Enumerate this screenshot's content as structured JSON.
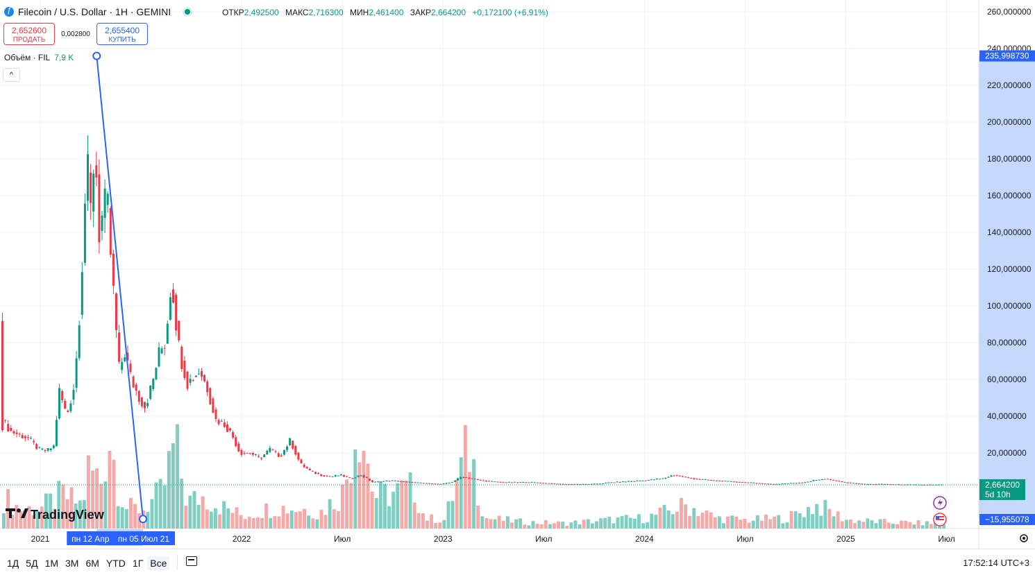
{
  "header": {
    "symbol_title": "Filecoin / U.S. Dollar · 1H · GEMINI",
    "ohlc": [
      {
        "label": "ОТКР",
        "value": "2,492500"
      },
      {
        "label": "МАКС",
        "value": "2,716300"
      },
      {
        "label": "МИН",
        "value": "2,461400"
      },
      {
        "label": "ЗАКР",
        "value": "2,664200"
      }
    ],
    "change": "+0,172100 (+6,91%)"
  },
  "trade": {
    "sell_price": "2,652600",
    "sell_label": "ПРОДАТЬ",
    "spread": "0,002800",
    "buy_price": "2,655400",
    "buy_label": "КУПИТЬ"
  },
  "volume_legend": {
    "label": "Объём · FIL",
    "value": "7,9 K"
  },
  "colors": {
    "up": "#089981",
    "down": "#f23645",
    "up_vol": "#80cdc1",
    "down_vol": "#f7a9a7",
    "drawing": "#2962ff",
    "axis_highlight": "#bbd1fd"
  },
  "chart_data": {
    "type": "candlestick",
    "price_axis": {
      "ticks": [
        "260,000000",
        "240,000000",
        "220,000000",
        "200,000000",
        "180,000000",
        "160,000000",
        "140,000000",
        "120,000000",
        "100,000000",
        "80,000000",
        "60,000000",
        "40,000000",
        "20,000000"
      ],
      "ylim": [
        0,
        260
      ],
      "labels": [
        {
          "value": "235,998730",
          "y": 235.99873,
          "kind": "drawing-top"
        },
        {
          "value": "2,664200",
          "y": 2.6642,
          "kind": "last",
          "countdown": "5d 10h"
        },
        {
          "value": "−15,955078",
          "y": -15.955078,
          "kind": "drawing-bottom"
        }
      ]
    },
    "time_axis": {
      "labels": [
        {
          "text": "2021",
          "t": 2021.0
        },
        {
          "text": "2022",
          "t": 2022.0
        },
        {
          "text": "Июл",
          "t": 2022.5
        },
        {
          "text": "2023",
          "t": 2023.0
        },
        {
          "text": "Июл",
          "t": 2023.5
        },
        {
          "text": "2024",
          "t": 2024.0
        },
        {
          "text": "Июл",
          "t": 2024.5
        },
        {
          "text": "2025",
          "t": 2025.0
        },
        {
          "text": "Июл",
          "t": 2025.5
        }
      ],
      "range_labels": [
        {
          "text": "пн 12 Апр",
          "t": 2021.28
        },
        {
          "text": "пн 05 Июл 21",
          "t": 2021.51
        }
      ]
    },
    "trend_line": {
      "start": {
        "t": 2021.28,
        "price": 235.99873
      },
      "end": {
        "t": 2021.51,
        "price": -15.955078
      }
    },
    "price_path": [
      [
        2020.8,
        120
      ],
      [
        2020.82,
        38
      ],
      [
        2020.86,
        32
      ],
      [
        2020.9,
        30
      ],
      [
        2020.95,
        28
      ],
      [
        2021.0,
        22
      ],
      [
        2021.04,
        21
      ],
      [
        2021.08,
        24
      ],
      [
        2021.1,
        55
      ],
      [
        2021.14,
        40
      ],
      [
        2021.18,
        58
      ],
      [
        2021.2,
        90
      ],
      [
        2021.22,
        130
      ],
      [
        2021.24,
        180
      ],
      [
        2021.26,
        150
      ],
      [
        2021.28,
        190
      ],
      [
        2021.3,
        140
      ],
      [
        2021.32,
        150
      ],
      [
        2021.34,
        160
      ],
      [
        2021.36,
        125
      ],
      [
        2021.38,
        95
      ],
      [
        2021.4,
        65
      ],
      [
        2021.43,
        75
      ],
      [
        2021.46,
        60
      ],
      [
        2021.5,
        50
      ],
      [
        2021.53,
        45
      ],
      [
        2021.57,
        60
      ],
      [
        2021.6,
        75
      ],
      [
        2021.63,
        80
      ],
      [
        2021.66,
        115
      ],
      [
        2021.7,
        75
      ],
      [
        2021.74,
        58
      ],
      [
        2021.8,
        65
      ],
      [
        2021.84,
        55
      ],
      [
        2021.88,
        38
      ],
      [
        2021.92,
        36
      ],
      [
        2021.96,
        30
      ],
      [
        2022.0,
        20
      ],
      [
        2022.05,
        20
      ],
      [
        2022.1,
        17
      ],
      [
        2022.15,
        22
      ],
      [
        2022.2,
        18
      ],
      [
        2022.25,
        27
      ],
      [
        2022.3,
        14
      ],
      [
        2022.35,
        10
      ],
      [
        2022.4,
        8
      ],
      [
        2022.45,
        7
      ],
      [
        2022.5,
        8
      ],
      [
        2022.55,
        6
      ],
      [
        2022.6,
        8
      ],
      [
        2022.66,
        4
      ],
      [
        2022.75,
        5
      ],
      [
        2022.85,
        4
      ],
      [
        2023.0,
        3
      ],
      [
        2023.05,
        4
      ],
      [
        2023.1,
        7
      ],
      [
        2023.2,
        5
      ],
      [
        2023.3,
        4
      ],
      [
        2023.45,
        4
      ],
      [
        2023.6,
        3
      ],
      [
        2023.75,
        3
      ],
      [
        2023.85,
        4
      ],
      [
        2024.0,
        5
      ],
      [
        2024.1,
        6
      ],
      [
        2024.15,
        8
      ],
      [
        2024.25,
        6
      ],
      [
        2024.35,
        5
      ],
      [
        2024.5,
        4
      ],
      [
        2024.65,
        3
      ],
      [
        2024.8,
        4
      ],
      [
        2024.9,
        6
      ],
      [
        2025.0,
        4
      ],
      [
        2025.1,
        3
      ],
      [
        2025.2,
        3
      ],
      [
        2025.3,
        2.7
      ],
      [
        2025.41,
        2.66
      ]
    ],
    "volume_ylim": [
      0,
      100000
    ],
    "volume_path": [
      [
        2020.8,
        30
      ],
      [
        2020.9,
        18
      ],
      [
        2021.0,
        20
      ],
      [
        2021.1,
        32
      ],
      [
        2021.2,
        22
      ],
      [
        2021.23,
        55
      ],
      [
        2021.3,
        45
      ],
      [
        2021.33,
        95
      ],
      [
        2021.38,
        40
      ],
      [
        2021.42,
        20
      ],
      [
        2021.5,
        18
      ],
      [
        2021.6,
        35
      ],
      [
        2021.66,
        80
      ],
      [
        2021.72,
        25
      ],
      [
        2021.8,
        30
      ],
      [
        2021.9,
        20
      ],
      [
        2022.0,
        12
      ],
      [
        2022.15,
        20
      ],
      [
        2022.35,
        18
      ],
      [
        2022.35,
        10
      ],
      [
        2022.5,
        35
      ],
      [
        2022.57,
        112
      ],
      [
        2022.65,
        30
      ],
      [
        2022.85,
        38
      ],
      [
        2022.9,
        10
      ],
      [
        2023.0,
        8
      ],
      [
        2023.12,
        78
      ],
      [
        2023.2,
        10
      ],
      [
        2023.4,
        6
      ],
      [
        2023.6,
        5
      ],
      [
        2023.8,
        8
      ],
      [
        2024.0,
        10
      ],
      [
        2024.2,
        22
      ],
      [
        2024.35,
        10
      ],
      [
        2024.5,
        8
      ],
      [
        2024.7,
        10
      ],
      [
        2024.85,
        22
      ],
      [
        2025.0,
        8
      ],
      [
        2025.2,
        6
      ],
      [
        2025.41,
        5
      ]
    ]
  },
  "range_buttons": [
    "1Д",
    "5Д",
    "1М",
    "3М",
    "6М",
    "YTD",
    "1Г",
    "Все"
  ],
  "active_range": "Все",
  "clock": "17:52:14 UTC+3",
  "watermark": "TradingView"
}
